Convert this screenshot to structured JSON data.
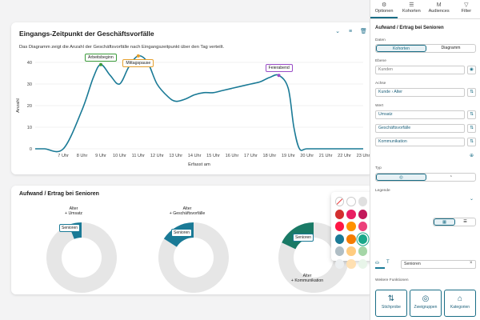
{
  "card1": {
    "title": "Eingangs-Zeitpunkt der Geschäftsvorfälle",
    "description": "Das Diagramm zeigt die Anzahl der Geschäftsvorfälle nach Eingangszeitpunkt über den Tag verteilt.",
    "tools": [
      "chevron-collapse-icon",
      "menu-icon",
      "trash-icon"
    ]
  },
  "chart_data": {
    "type": "line",
    "xlabel": "Erfasst am",
    "ylabel": "Anzahl",
    "ylim": [
      0,
      40
    ],
    "yticks": [
      0,
      10,
      20,
      30,
      40
    ],
    "categories": [
      "7 Uhr",
      "8 Uhr",
      "9 Uhr",
      "10 Uhr",
      "11 Uhr",
      "12 Uhr",
      "13 Uhr",
      "14 Uhr",
      "15 Uhr",
      "16 Uhr",
      "17 Uhr",
      "18 Uhr",
      "19 Uhr",
      "20 Uhr",
      "21 Uhr",
      "22 Uhr",
      "23 Uhr"
    ],
    "x": [
      5.5,
      6,
      7,
      8,
      8.6,
      9,
      9.5,
      10,
      10.5,
      11,
      11.5,
      12,
      12.6,
      13,
      13.5,
      14,
      14.5,
      15,
      15.5,
      16,
      16.5,
      17,
      17.5,
      18,
      18.5,
      19,
      19.3,
      19.6,
      20,
      21,
      22,
      23
    ],
    "y": [
      0,
      0,
      0,
      18,
      33,
      39,
      34,
      30,
      38,
      43,
      40,
      30,
      24,
      22,
      23,
      25,
      26,
      26,
      27,
      28,
      29,
      30,
      31,
      33,
      34,
      28,
      10,
      0,
      0,
      0,
      0,
      0
    ],
    "color": "#1a7a96",
    "annotations": [
      {
        "label": "Arbeitsbeginn",
        "style": "green"
      },
      {
        "label": "Mittagspause",
        "style": "orange"
      },
      {
        "label": "Feierabend",
        "style": "purple"
      }
    ]
  },
  "card2": {
    "title": "Aufwand / Ertrag bei Senioren",
    "donuts": [
      {
        "head": "Alter",
        "sub": "+ Umsatz",
        "tag": "Senioren",
        "share": 0.06,
        "color": "#1a7a96"
      },
      {
        "head": "Alter",
        "sub": "+ Geschäftsvorfälle",
        "tag": "Senioren",
        "share": 0.16,
        "color": "#1a7a96"
      },
      {
        "head": "Alter",
        "sub": "+ Kommunikation",
        "tag": "Senioren",
        "share": 0.18,
        "color": "#1a7a66"
      }
    ],
    "rest_color": "#e6e6e6"
  },
  "picker": {
    "rows": [
      [
        "none",
        "#ffffff",
        "#e0e0e0",
        "#c0c0c0",
        "#9e9e9e",
        "#6e6e6e",
        "#444444",
        "#000000"
      ],
      [
        "#d32f2f",
        "#e91e63",
        "#c2185b",
        "#7b1fa2",
        "#3f51b5",
        "#0288d1",
        "#1de9b6",
        "#76ff03"
      ],
      [
        "#ff1744",
        "#ff9100",
        "#ec407a",
        "#e040fb",
        "#40c4ff",
        "#1de9b6",
        "#ffea00",
        "#c6ff00"
      ],
      [
        "#1a7a96",
        "#f57c00",
        "#1aa88a",
        "#e57373",
        "#5c6bc0",
        "#4fc3f7",
        "#80cbc4",
        "#dce775"
      ],
      [
        "#b0bec5",
        "#ffcc80",
        "#a5d6a7",
        "#ef9a9a",
        "#9fa8da",
        "#b3e5fc",
        "#b2dfdb",
        "#fff59d"
      ],
      [
        "#eceff1",
        "#ffe0b2",
        "#e8f5e9",
        "#ffebee",
        "#e8eaf6",
        "#e1f5fe",
        "#e0f2f1",
        "#fffde7"
      ]
    ],
    "selected": [
      3,
      2
    ]
  },
  "panel": {
    "tabs": [
      {
        "label": "Optionen",
        "icon": "gear-icon",
        "glyph": "⚙"
      },
      {
        "label": "Kohorten",
        "icon": "cylinder-icon",
        "glyph": "☰"
      },
      {
        "label": "Audiences",
        "icon": "audience-icon",
        "glyph": "M"
      },
      {
        "label": "Filter",
        "icon": "filter-icon",
        "glyph": "▽"
      }
    ],
    "section_title": "Aufwand / Ertrag bei Senioren",
    "daten_label": "Daten",
    "seg_kohorten": "Kohorten",
    "seg_diagramm": "Diagramm",
    "ebene_label": "Ebene",
    "ebene_value": "Kunden",
    "achse_label": "Achse",
    "achse_value": "Kunde › Alter",
    "wert_label": "Wert",
    "werte": [
      "Umsatz",
      "Geschäftsvorfälle",
      "Kommunikation"
    ],
    "typ_label": "Typ",
    "legende_label": "Legende",
    "filter_value": "Senioren",
    "weitere_label": "Weitere Funktionen",
    "funcs": [
      {
        "label": "Stichprobe",
        "glyph": "⇅"
      },
      {
        "label": "Zweigruppen",
        "glyph": "◎"
      },
      {
        "label": "Kategorien",
        "glyph": "⌂"
      }
    ]
  }
}
